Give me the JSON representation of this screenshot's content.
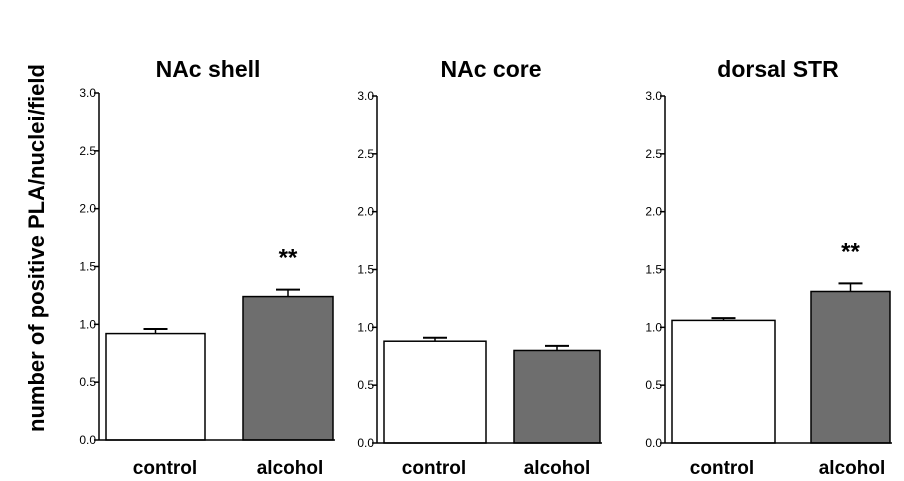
{
  "figure": {
    "ylabel": "number of positive PLA/nuclei/field"
  },
  "chart_data": [
    {
      "type": "bar",
      "title": "NAc shell",
      "categories": [
        "control",
        "alcohol"
      ],
      "values": [
        0.92,
        1.24
      ],
      "errors": [
        0.04,
        0.06
      ],
      "significance": [
        "",
        "**"
      ],
      "bar_colors": [
        "#ffffff",
        "#6e6e6e"
      ],
      "ylim": [
        0,
        3.0
      ],
      "yticks": [
        "0.0",
        "0.5",
        "1.0",
        "1.5",
        "2.0",
        "2.5",
        "3.0"
      ]
    },
    {
      "type": "bar",
      "title": "NAc core",
      "categories": [
        "control",
        "alcohol"
      ],
      "values": [
        0.88,
        0.8
      ],
      "errors": [
        0.03,
        0.04
      ],
      "significance": [
        "",
        ""
      ],
      "bar_colors": [
        "#ffffff",
        "#6e6e6e"
      ],
      "ylim": [
        0,
        3.0
      ],
      "yticks": [
        "0.0",
        "0.5",
        "1.0",
        "1.5",
        "2.0",
        "2.5",
        "3.0"
      ]
    },
    {
      "type": "bar",
      "title": "dorsal STR",
      "categories": [
        "control",
        "alcohol"
      ],
      "values": [
        1.06,
        1.31
      ],
      "errors": [
        0.02,
        0.07
      ],
      "significance": [
        "",
        "**"
      ],
      "bar_colors": [
        "#ffffff",
        "#6e6e6e"
      ],
      "ylim": [
        0,
        3.0
      ],
      "yticks": [
        "0.0",
        "0.5",
        "1.0",
        "1.5",
        "2.0",
        "2.5",
        "3.0"
      ]
    }
  ]
}
